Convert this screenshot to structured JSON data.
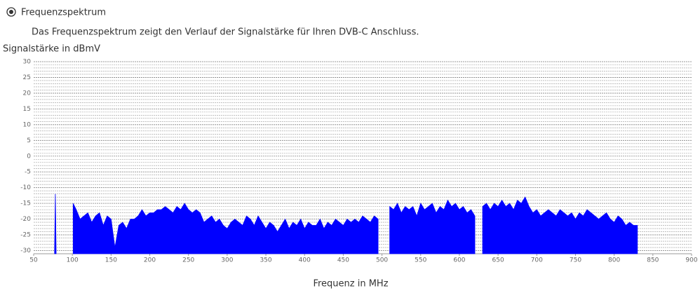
{
  "header": {
    "option": "Frequenzspektrum",
    "description": "Das Frequenzspektrum zeigt den Verlauf der Signalstärke für Ihren DVB-C Anschluss."
  },
  "chart_data": {
    "type": "area",
    "y_label": "Signalstärke in dBmV",
    "x_label": "Frequenz in MHz",
    "color": "#0000ff",
    "xlim": [
      50,
      900
    ],
    "xticks": [
      50,
      100,
      150,
      200,
      250,
      300,
      350,
      400,
      450,
      500,
      550,
      600,
      650,
      700,
      750,
      800,
      850,
      900
    ],
    "ylim": [
      -31,
      30
    ],
    "yticks": [
      -30,
      -25,
      -20,
      -15,
      -10,
      -5,
      0,
      5,
      10,
      15,
      20,
      25,
      30
    ],
    "grid": true,
    "minor_grid_step": 1,
    "series": [
      {
        "name": "Signal",
        "x": [
          77,
          78,
          79,
          80,
          101,
          105,
          110,
          115,
          120,
          125,
          130,
          135,
          140,
          145,
          150,
          155,
          160,
          165,
          170,
          175,
          180,
          185,
          190,
          195,
          200,
          205,
          210,
          215,
          220,
          225,
          230,
          235,
          240,
          245,
          250,
          255,
          260,
          265,
          270,
          275,
          280,
          285,
          290,
          295,
          300,
          305,
          310,
          315,
          320,
          325,
          330,
          335,
          340,
          345,
          350,
          355,
          360,
          365,
          370,
          375,
          380,
          385,
          390,
          395,
          400,
          405,
          410,
          415,
          420,
          425,
          430,
          435,
          440,
          445,
          450,
          455,
          460,
          465,
          470,
          475,
          480,
          485,
          490,
          495,
          500,
          510,
          515,
          520,
          525,
          530,
          535,
          540,
          545,
          550,
          555,
          560,
          565,
          570,
          575,
          580,
          585,
          590,
          595,
          600,
          605,
          610,
          615,
          620,
          625,
          630,
          635,
          640,
          645,
          650,
          655,
          660,
          665,
          670,
          675,
          680,
          685,
          690,
          695,
          700,
          705,
          710,
          715,
          720,
          725,
          730,
          735,
          740,
          745,
          750,
          755,
          760,
          765,
          770,
          775,
          780,
          785,
          790,
          795,
          800,
          805,
          810,
          815,
          820,
          825,
          830
        ],
        "values": [
          -30,
          -12,
          -30,
          null,
          -15,
          -17,
          -20,
          -19,
          -18,
          -21,
          -19,
          -18,
          -22,
          -19,
          -20,
          -29,
          -22,
          -21,
          -23,
          -20,
          -20,
          -19,
          -17,
          -19,
          -18,
          -18,
          -17,
          -17,
          -16,
          -17,
          -18,
          -16,
          -17,
          -15,
          -17,
          -18,
          -17,
          -18,
          -21,
          -20,
          -19,
          -21,
          -20,
          -22,
          -23,
          -21,
          -20,
          -21,
          -22,
          -19,
          -20,
          -22,
          -19,
          -21,
          -23,
          -21,
          -22,
          -24,
          -22,
          -20,
          -23,
          -21,
          -22,
          -20,
          -23,
          -21,
          -22,
          -22,
          -20,
          -23,
          -21,
          -22,
          -20,
          -21,
          -22,
          -20,
          -21,
          -20,
          -21,
          -19,
          -20,
          -21,
          -19,
          -20,
          null,
          -16,
          -17,
          -15,
          -18,
          -16,
          -17,
          -16,
          -19,
          -15,
          -17,
          -16,
          -15,
          -18,
          -16,
          -17,
          -14,
          -16,
          -15,
          -17,
          -16,
          -18,
          -17,
          -19,
          null,
          -16,
          -15,
          -17,
          -15,
          -16,
          -14,
          -16,
          -15,
          -17,
          -14,
          -15,
          -13,
          -16,
          -18,
          -17,
          -19,
          -18,
          -17,
          -18,
          -19,
          -17,
          -18,
          -19,
          -18,
          -20,
          -18,
          -19,
          -17,
          -18,
          -19,
          -20,
          -19,
          -18,
          -20,
          -21,
          -19,
          -20,
          -22,
          -21,
          -22,
          -22
        ]
      }
    ]
  }
}
